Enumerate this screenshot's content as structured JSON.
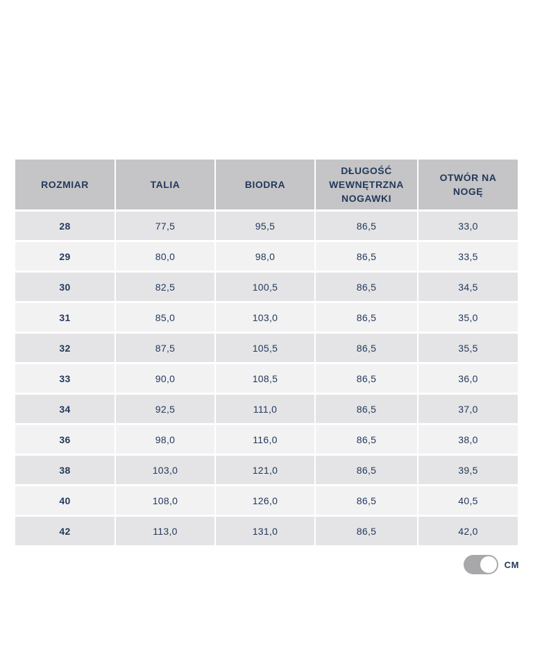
{
  "size_table": {
    "headers": [
      "ROZMIAR",
      "TALIA",
      "BIODRA",
      "DŁUGOŚĆ WEWNĘTRZNA NOGAWKI",
      "OTWÓR NA NOGĘ"
    ],
    "rows": [
      [
        "28",
        "77,5",
        "95,5",
        "86,5",
        "33,0"
      ],
      [
        "29",
        "80,0",
        "98,0",
        "86,5",
        "33,5"
      ],
      [
        "30",
        "82,5",
        "100,5",
        "86,5",
        "34,5"
      ],
      [
        "31",
        "85,0",
        "103,0",
        "86,5",
        "35,0"
      ],
      [
        "32",
        "87,5",
        "105,5",
        "86,5",
        "35,5"
      ],
      [
        "33",
        "90,0",
        "108,5",
        "86,5",
        "36,0"
      ],
      [
        "34",
        "92,5",
        "111,0",
        "86,5",
        "37,0"
      ],
      [
        "36",
        "98,0",
        "116,0",
        "86,5",
        "38,0"
      ],
      [
        "38",
        "103,0",
        "121,0",
        "86,5",
        "39,5"
      ],
      [
        "40",
        "108,0",
        "126,0",
        "86,5",
        "40,5"
      ],
      [
        "42",
        "113,0",
        "131,0",
        "86,5",
        "42,0"
      ]
    ]
  },
  "unit_toggle": {
    "label": "CM",
    "state": "on"
  },
  "colors": {
    "header_bg": "#c5c5c7",
    "row_light": "#f2f2f3",
    "row_dark": "#e4e4e6",
    "text_navy": "#23395b",
    "toggle_track": "#a8a8ab",
    "toggle_thumb": "#ffffff",
    "page_bg": "#ffffff"
  }
}
